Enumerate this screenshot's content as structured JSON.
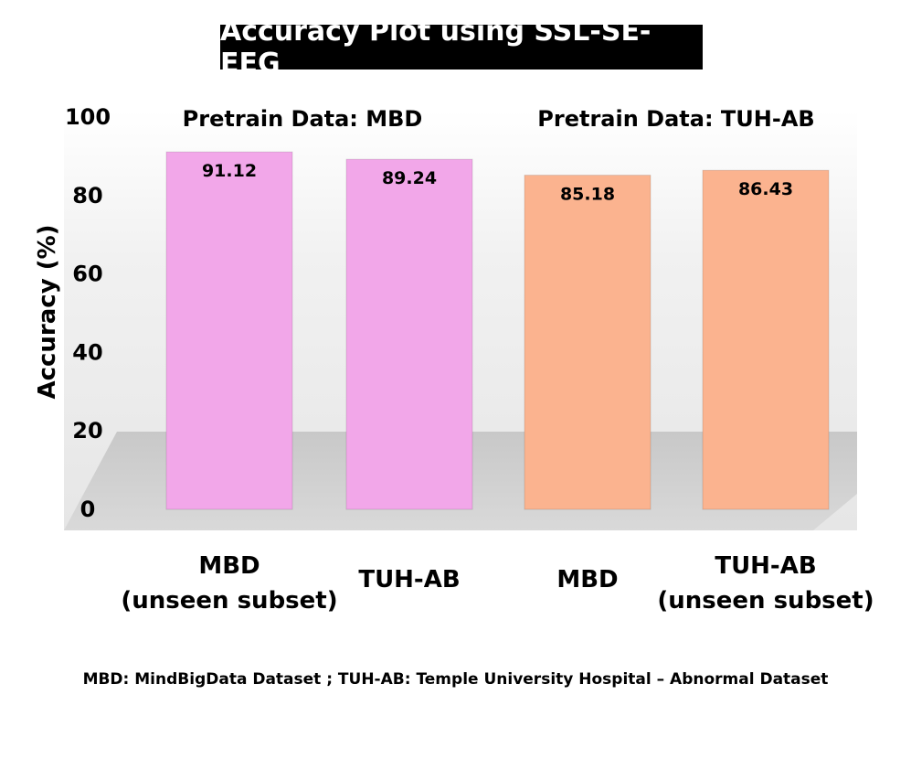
{
  "chart_data": {
    "type": "bar",
    "title": "Accuracy Plot using SSL-SE-EEG",
    "ylabel": "Accuracy (%)",
    "ylim": [
      0,
      100
    ],
    "yticks": [
      "0",
      "20",
      "40",
      "60",
      "80",
      "100"
    ],
    "groups": [
      {
        "label": "Pretrain Data: MBD",
        "color": "#f2a7e9"
      },
      {
        "label": "Pretrain Data: TUH-AB",
        "color": "#fbb38f"
      }
    ],
    "categories": [
      {
        "line1": "MBD",
        "line2": "(unseen subset)"
      },
      {
        "line1": "TUH-AB",
        "line2": ""
      },
      {
        "line1": "MBD",
        "line2": ""
      },
      {
        "line1": "TUH-AB",
        "line2": "(unseen subset)"
      }
    ],
    "values": [
      91.12,
      89.24,
      85.18,
      86.43
    ],
    "value_labels": [
      "91.12",
      "89.24",
      "85.18",
      "86.43"
    ],
    "bar_group": [
      0,
      0,
      1,
      1
    ]
  },
  "footnote": "MBD: MindBigData Dataset ; TUH-AB: Temple University Hospital – Abnormal Dataset"
}
